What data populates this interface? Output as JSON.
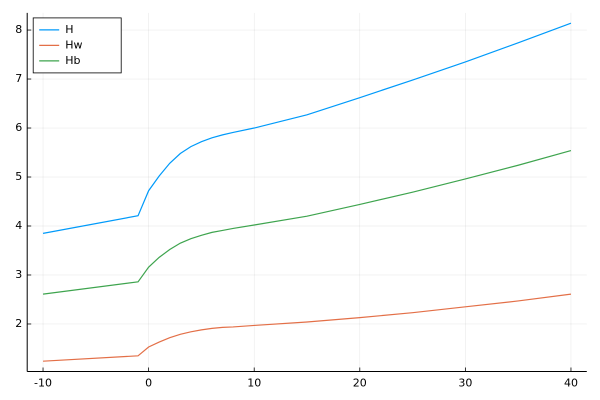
{
  "chart_data": {
    "type": "line",
    "x": [
      -10,
      -1,
      0,
      1,
      2,
      3,
      4,
      5,
      6,
      7,
      8,
      10,
      15,
      20,
      25,
      30,
      35,
      40
    ],
    "series": [
      {
        "name": "H",
        "color": "#009afa",
        "values": [
          3.85,
          4.21,
          4.72,
          5.02,
          5.28,
          5.48,
          5.62,
          5.72,
          5.8,
          5.86,
          5.91,
          6.0,
          6.27,
          6.62,
          6.98,
          7.35,
          7.74,
          8.14
        ]
      },
      {
        "name": "Hw",
        "color": "#e36f47",
        "values": [
          1.24,
          1.35,
          1.53,
          1.63,
          1.72,
          1.79,
          1.84,
          1.88,
          1.91,
          1.93,
          1.94,
          1.97,
          2.04,
          2.13,
          2.23,
          2.35,
          2.47,
          2.61
        ]
      },
      {
        "name": "Hb",
        "color": "#3ea44e",
        "values": [
          2.61,
          2.86,
          3.16,
          3.36,
          3.52,
          3.65,
          3.74,
          3.81,
          3.87,
          3.91,
          3.95,
          4.02,
          4.2,
          4.44,
          4.69,
          4.96,
          5.24,
          5.54
        ]
      }
    ],
    "xlim": [
      -11.5,
      41.5
    ],
    "ylim": [
      1.03,
      8.35
    ],
    "xticks": [
      -10,
      0,
      10,
      20,
      30,
      40
    ],
    "yticks": [
      2,
      3,
      4,
      5,
      6,
      7,
      8
    ],
    "grid": true,
    "legend": "top-left"
  }
}
